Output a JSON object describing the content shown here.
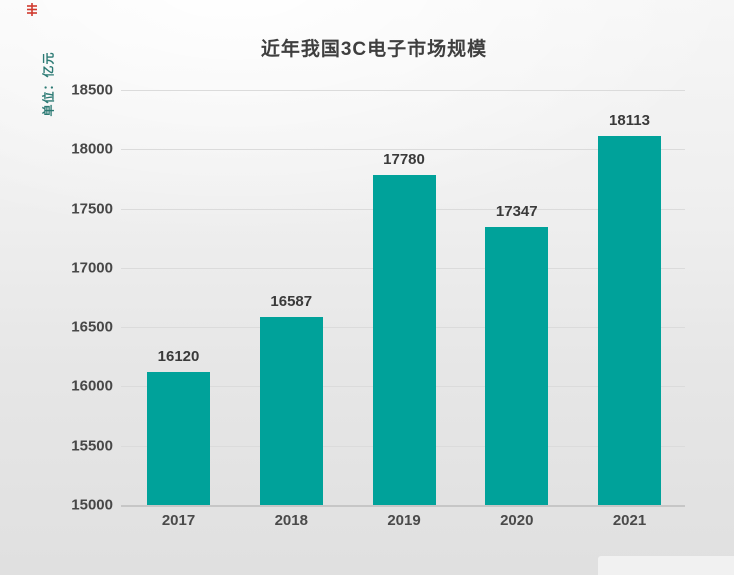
{
  "chart_data": {
    "type": "bar",
    "title": "近年我国3C电子市场规模",
    "ylabel": "单位：亿元",
    "xlabel": "",
    "categories": [
      "2017",
      "2018",
      "2019",
      "2020",
      "2021"
    ],
    "values": [
      16120,
      16587,
      17780,
      17347,
      18113
    ],
    "value_labels": [
      "16120",
      "16587",
      "17780",
      "17347",
      "18113"
    ],
    "ylim": [
      15000,
      18500
    ],
    "ytick_step": 500,
    "ytick_labels": [
      "15000",
      "15500",
      "16000",
      "16500",
      "17000",
      "17500",
      "18000",
      "18500"
    ],
    "grid": true,
    "legend_position": "none",
    "colors": {
      "bar": "#00A29A",
      "title_text": "#3F3F3F",
      "tick_text": "#474747",
      "value_text": "#3A3A3A",
      "xlabel_text": "#4A4A4A",
      "grid_line": "#DBDBDB",
      "axis_line": "#C6C6C6",
      "ylabel_text": "#2C7A74",
      "corner_mark": "#D0392E",
      "background_top": "#FDFDFD",
      "background_bottom": "#E0E0E0"
    }
  }
}
